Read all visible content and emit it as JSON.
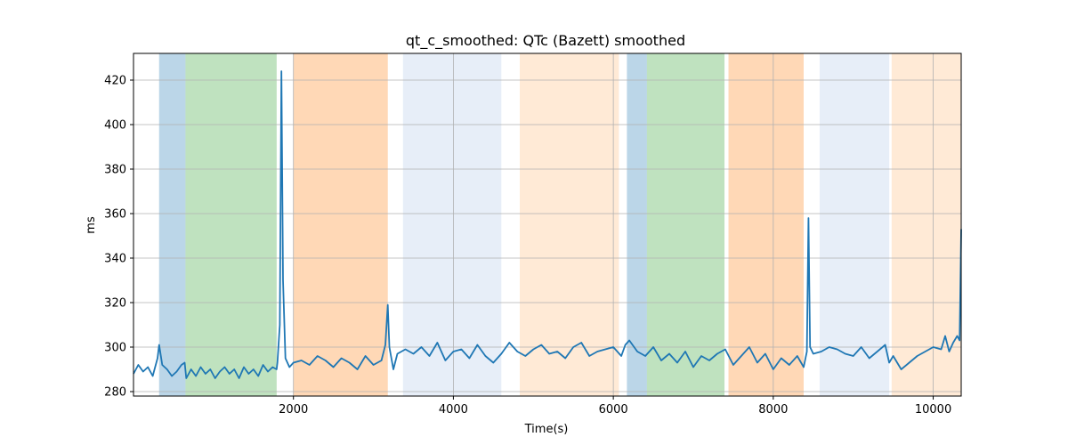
{
  "chart_data": {
    "type": "line",
    "title": "qt_c_smoothed: QTc (Bazett) smoothed",
    "xlabel": "Time(s)",
    "ylabel": "ms",
    "xlim": [
      0,
      10350
    ],
    "ylim": [
      278,
      432
    ],
    "x_ticks": [
      2000,
      4000,
      6000,
      8000,
      10000
    ],
    "y_ticks": [
      280,
      300,
      320,
      340,
      360,
      380,
      400,
      420
    ],
    "grid": true,
    "line_color": "#1f77b4",
    "bands": [
      {
        "start": 320,
        "end": 650,
        "color": "#1f77b4",
        "opacity": 0.3
      },
      {
        "start": 650,
        "end": 1790,
        "color": "#2ca02c",
        "opacity": 0.3
      },
      {
        "start": 2000,
        "end": 3180,
        "color": "#ff7f0e",
        "opacity": 0.3
      },
      {
        "start": 3370,
        "end": 4600,
        "color": "#aec7e8",
        "opacity": 0.3
      },
      {
        "start": 4830,
        "end": 6070,
        "color": "#ffbb78",
        "opacity": 0.3
      },
      {
        "start": 6170,
        "end": 6420,
        "color": "#1f77b4",
        "opacity": 0.3
      },
      {
        "start": 6420,
        "end": 7390,
        "color": "#2ca02c",
        "opacity": 0.3
      },
      {
        "start": 7440,
        "end": 8380,
        "color": "#ff7f0e",
        "opacity": 0.3
      },
      {
        "start": 8580,
        "end": 9450,
        "color": "#aec7e8",
        "opacity": 0.3
      },
      {
        "start": 9480,
        "end": 10350,
        "color": "#ffbb78",
        "opacity": 0.3
      }
    ],
    "series": [
      {
        "x": [
          0,
          60,
          120,
          180,
          240,
          300,
          320,
          360,
          420,
          480,
          540,
          600,
          640,
          660,
          720,
          780,
          840,
          900,
          960,
          1020,
          1080,
          1140,
          1200,
          1260,
          1320,
          1380,
          1440,
          1500,
          1560,
          1620,
          1680,
          1740,
          1790,
          1800,
          1830,
          1850,
          1870,
          1900,
          1950,
          2000,
          2100,
          2200,
          2300,
          2400,
          2500,
          2600,
          2700,
          2800,
          2900,
          3000,
          3100,
          3150,
          3180,
          3200,
          3250,
          3300,
          3400,
          3500,
          3600,
          3700,
          3800,
          3900,
          4000,
          4100,
          4200,
          4300,
          4400,
          4500,
          4600,
          4700,
          4800,
          4900,
          5000,
          5100,
          5200,
          5300,
          5400,
          5500,
          5600,
          5700,
          5800,
          5900,
          6000,
          6100,
          6150,
          6200,
          6300,
          6400,
          6500,
          6600,
          6700,
          6800,
          6900,
          7000,
          7100,
          7200,
          7300,
          7400,
          7500,
          7600,
          7700,
          7800,
          7900,
          8000,
          8100,
          8200,
          8300,
          8380,
          8420,
          8440,
          8460,
          8500,
          8600,
          8700,
          8800,
          8900,
          9000,
          9100,
          9200,
          9300,
          9400,
          9450,
          9500,
          9600,
          9700,
          9800,
          9900,
          10000,
          10100,
          10150,
          10200,
          10250,
          10300,
          10330,
          10350
        ],
        "y": [
          288,
          292,
          289,
          291,
          287,
          295,
          301,
          292,
          290,
          287,
          289,
          292,
          293,
          286,
          290,
          287,
          291,
          288,
          290,
          286,
          289,
          291,
          288,
          290,
          286,
          291,
          288,
          290,
          287,
          292,
          289,
          291,
          290,
          293,
          310,
          424,
          330,
          295,
          291,
          293,
          294,
          292,
          296,
          294,
          291,
          295,
          293,
          290,
          296,
          292,
          294,
          301,
          319,
          300,
          290,
          297,
          299,
          297,
          300,
          296,
          302,
          294,
          298,
          299,
          295,
          301,
          296,
          293,
          297,
          302,
          298,
          296,
          299,
          301,
          297,
          298,
          295,
          300,
          302,
          296,
          298,
          299,
          300,
          296,
          301,
          303,
          298,
          296,
          300,
          294,
          297,
          293,
          298,
          291,
          296,
          294,
          297,
          299,
          292,
          296,
          300,
          293,
          297,
          290,
          295,
          292,
          296,
          291,
          298,
          358,
          300,
          297,
          298,
          300,
          299,
          297,
          296,
          300,
          295,
          298,
          301,
          293,
          296,
          290,
          293,
          296,
          298,
          300,
          299,
          305,
          298,
          302,
          305,
          303,
          353
        ]
      }
    ]
  }
}
